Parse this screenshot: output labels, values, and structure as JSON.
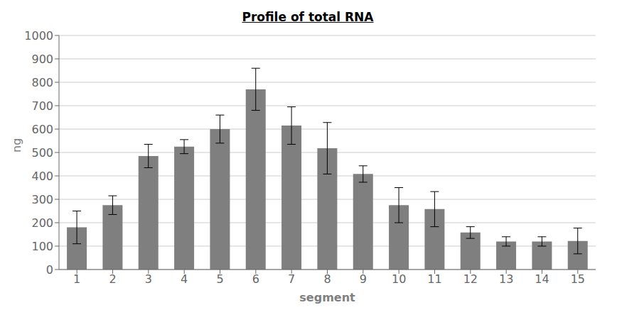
{
  "chart_data": {
    "type": "bar",
    "title": "Profile of total RNA",
    "xlabel": "segment",
    "ylabel": "ng",
    "categories": [
      1,
      2,
      3,
      4,
      5,
      6,
      7,
      8,
      9,
      10,
      11,
      12,
      13,
      14,
      15
    ],
    "values": [
      180,
      275,
      485,
      525,
      600,
      770,
      615,
      518,
      408,
      275,
      258,
      158,
      120,
      120,
      122
    ],
    "errors": [
      70,
      40,
      50,
      30,
      60,
      90,
      80,
      110,
      35,
      75,
      75,
      25,
      20,
      20,
      55
    ],
    "color": "#7f7f7f",
    "ylim": [
      0,
      1000
    ],
    "yticks": [
      0,
      100,
      200,
      300,
      400,
      500,
      600,
      700,
      800,
      900,
      1000
    ],
    "grid": true
  }
}
